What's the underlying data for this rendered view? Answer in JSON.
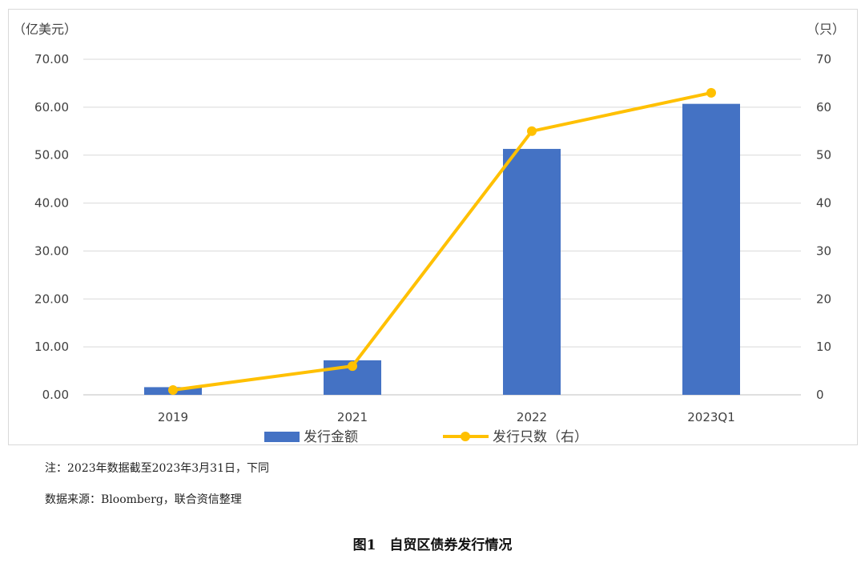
{
  "chart_data": {
    "type": "bar",
    "categories": [
      "2019",
      "2021",
      "2022",
      "2023Q1"
    ],
    "series": [
      {
        "name": "发行金额",
        "type": "bar",
        "axis": "left",
        "color": "#4472C4",
        "values": [
          1.6,
          7.2,
          51.3,
          60.7
        ]
      },
      {
        "name": "发行只数（右）",
        "type": "line",
        "axis": "right",
        "color": "#FFC000",
        "values": [
          1,
          6,
          55,
          63
        ]
      }
    ],
    "y_left": {
      "unit_label": "（亿美元）",
      "min": 0,
      "max": 70,
      "ticks": [
        "0.00",
        "10.00",
        "20.00",
        "30.00",
        "40.00",
        "50.00",
        "60.00",
        "70.00"
      ]
    },
    "y_right": {
      "unit_label": "（只）",
      "min": 0,
      "max": 70,
      "ticks": [
        "0",
        "10",
        "20",
        "30",
        "40",
        "50",
        "60",
        "70"
      ]
    },
    "grid": true,
    "legend_position": "bottom"
  },
  "note": "注：2023年数据截至2023年3月31日，下同",
  "source": "数据来源：Bloomberg，联合资信整理",
  "caption": "图1　自贸区债券发行情况"
}
